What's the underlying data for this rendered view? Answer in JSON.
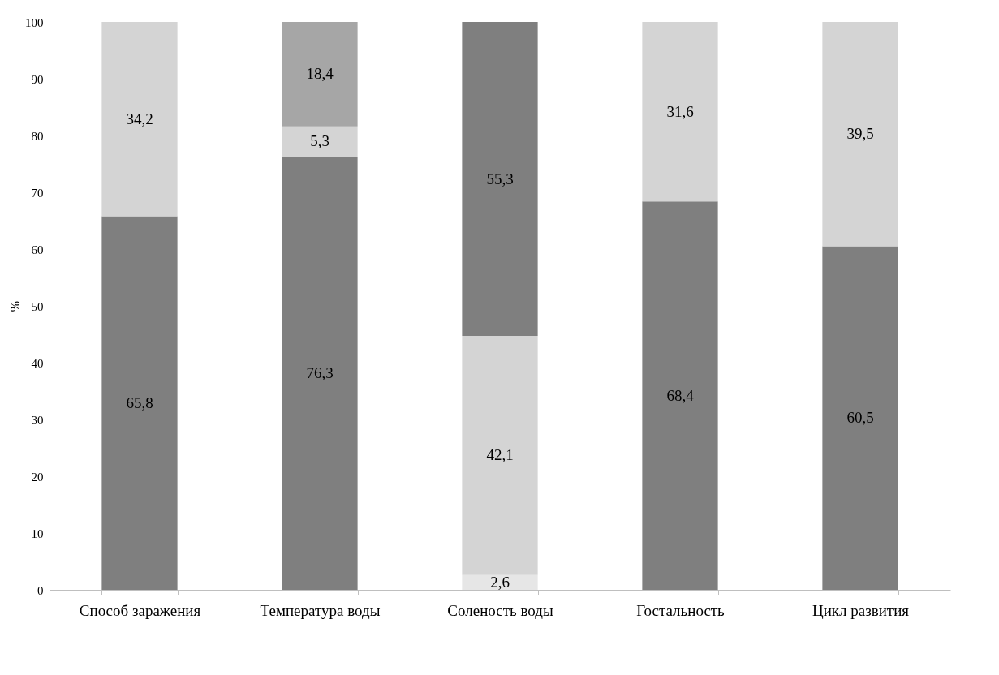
{
  "chart_data": {
    "type": "bar",
    "stacked": true,
    "ylabel": "%",
    "categories": [
      "Способ заражения",
      "Температура воды",
      "Соленость воды",
      "Гостальность",
      "Цикл развития"
    ],
    "series": [
      {
        "color": "#e6e6e6",
        "values": [
          null,
          null,
          2.6,
          null,
          null
        ],
        "value_labels": [
          null,
          null,
          "2,6",
          null,
          null
        ]
      },
      {
        "color": "#7f7f7f",
        "values": [
          65.8,
          76.3,
          null,
          68.4,
          60.5
        ],
        "value_labels": [
          "65,8",
          "76,3",
          null,
          "68,4",
          "60,5"
        ]
      },
      {
        "color": "#d4d4d4",
        "values": [
          34.2,
          5.3,
          42.1,
          31.6,
          39.5
        ],
        "value_labels": [
          "34,2",
          "5,3",
          "42,1",
          "31,6",
          "39,5"
        ]
      },
      {
        "color": "#a6a6a6",
        "values": [
          null,
          18.4,
          null,
          null,
          null
        ],
        "value_labels": [
          null,
          "18,4",
          null,
          null,
          null
        ]
      },
      {
        "color": "#7f7f7f",
        "values": [
          null,
          null,
          55.3,
          null,
          null
        ],
        "value_labels": [
          null,
          null,
          "55,3",
          null,
          null
        ]
      }
    ],
    "ylim": [
      0,
      100
    ],
    "yticks": [
      0,
      10,
      20,
      30,
      40,
      50,
      60,
      70,
      80,
      90,
      100
    ],
    "grid": false
  }
}
